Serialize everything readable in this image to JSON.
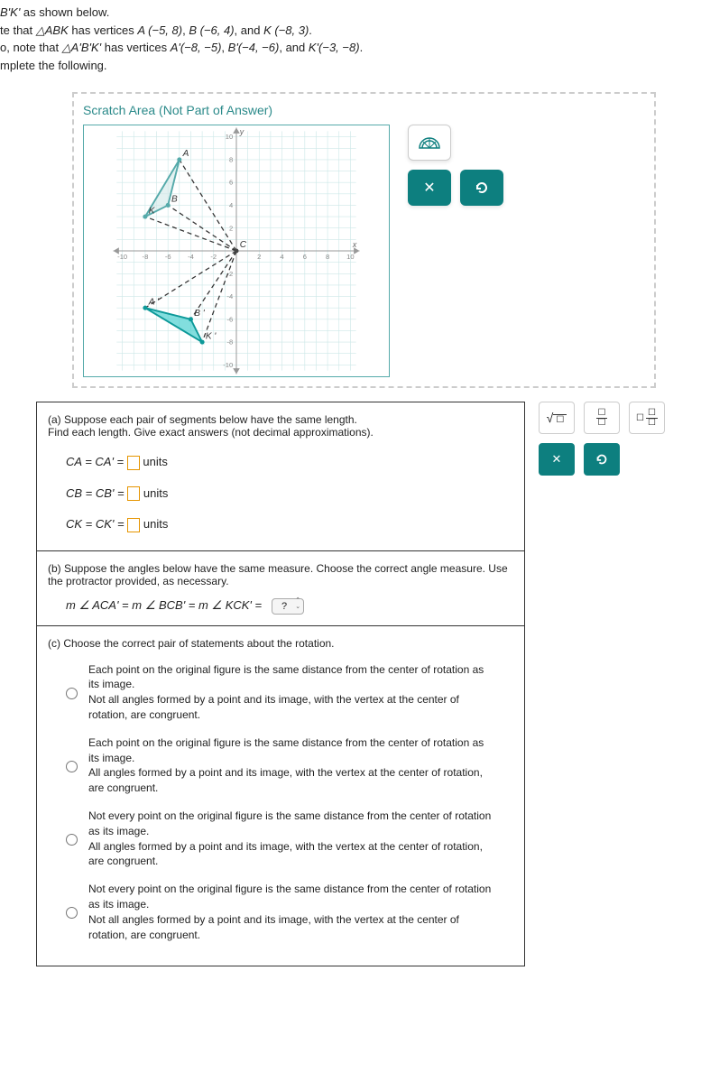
{
  "header": {
    "line1_pre": "B'K' ",
    "line1_post": "as shown below.",
    "line2_pre": "te that ",
    "triangle1": "△ABK",
    "line2_mid": " has vertices ",
    "vA": "A (−5, 8)",
    "vB": "B (−6, 4)",
    "vK": "K (−8, 3)",
    "line3_pre": "o, note that ",
    "triangle2": "△A'B'K'",
    "line3_mid": " has vertices ",
    "vAp": "A'(−8, −5)",
    "vBp": "B'(−4, −6)",
    "vKp": "K'(−3, −8)",
    "line4": "mplete the following."
  },
  "scratch": {
    "title": "Scratch Area (Not Part of Answer)",
    "x_label": "x",
    "y_label": "y",
    "ticks": [
      "-10",
      "-8",
      "-6",
      "-4",
      "-2",
      "2",
      "4",
      "6",
      "8",
      "10"
    ],
    "labels": {
      "A": "A",
      "B": "B",
      "K": "K",
      "Ap": "A '",
      "Bp": "B '",
      "Kp": "K '",
      "C": "C"
    },
    "points": {
      "A": [
        -5,
        8
      ],
      "B": [
        -6,
        4
      ],
      "K": [
        -8,
        3
      ],
      "Ap": [
        -8,
        -5
      ],
      "Bp": [
        -4,
        -6
      ],
      "Kp": [
        -3,
        -8
      ],
      "C": [
        0,
        0
      ]
    },
    "colors": {
      "grid": "#cde8e8",
      "axis": "#999",
      "tri1_fill": "#d0e8e8",
      "tri1_stroke": "#5aa",
      "tri2_fill": "#4dd0d0",
      "tri2_stroke": "#0d9999",
      "dash": "#333"
    }
  },
  "partA": {
    "prompt1": "(a) Suppose each pair of segments below have the same length.",
    "prompt2": "Find each length. Give exact answers (not decimal approximations).",
    "eq1_lhs": "CA  =  CA'  = ",
    "eq2_lhs": "CB  =  CB'  = ",
    "eq3_lhs": "CK  =  CK'  = ",
    "units": "units"
  },
  "partB": {
    "prompt1": "(b) Suppose the angles below have the same measure. Choose the correct angle measure. Use the protractor provided, as necessary.",
    "eq": "m ∠ ACA' = m ∠ BCB' = m ∠ KCK' =",
    "dropdown": "?"
  },
  "partC": {
    "prompt": "(c) Choose the correct pair of statements about the rotation.",
    "opt1": "Each point on the original figure is the same distance from the center of rotation as its image.\nNot all angles formed by a point and its image, with the vertex at the center of rotation, are congruent.",
    "opt2": "Each point on the original figure is the same distance from the center of rotation as its image.\nAll angles formed by a point and its image, with the vertex at the center of rotation, are congruent.",
    "opt3": "Not every point on the original figure is the same distance from the center of rotation as its image.\nAll angles formed by a point and its image, with the vertex at the center of rotation, are congruent.",
    "opt4": "Not every point on the original figure is the same distance from the center of rotation as its image.\nNot all angles formed by a point and its image, with the vertex at the center of rotation, are congruent."
  },
  "tools": {
    "close": "✕",
    "reset": "↶",
    "sqrt": "√",
    "box": "☐"
  }
}
